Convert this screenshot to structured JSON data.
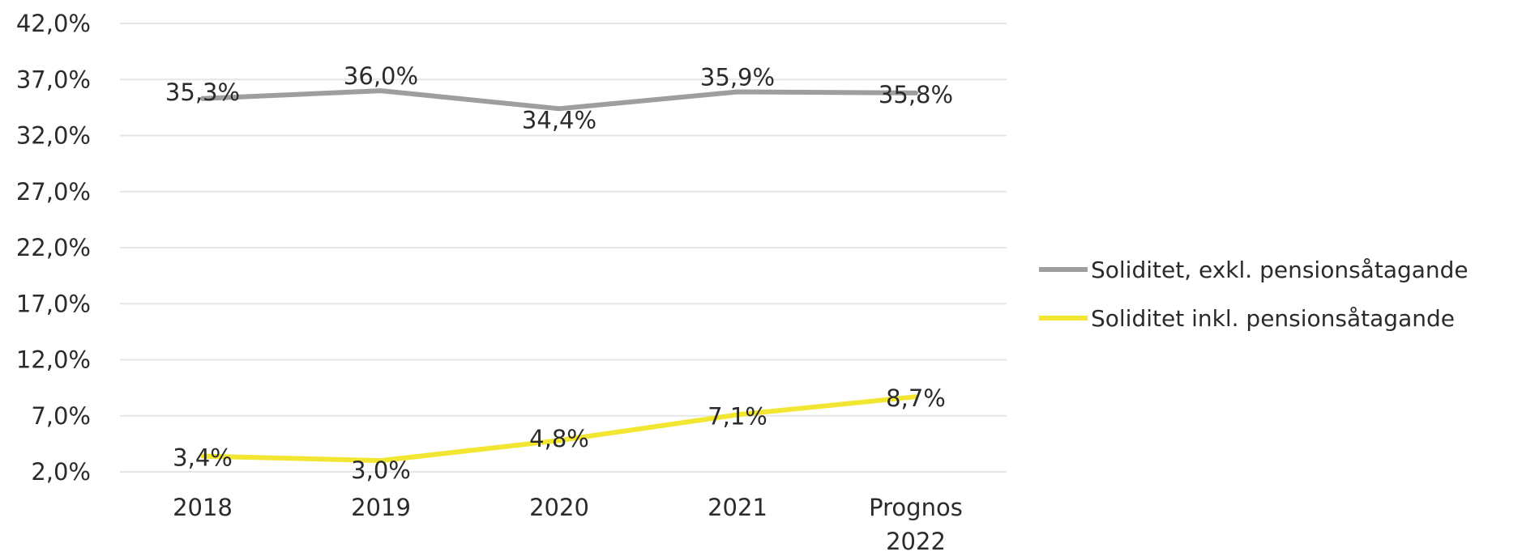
{
  "chart_data": {
    "type": "line",
    "categories": [
      [
        "2018"
      ],
      [
        "2019"
      ],
      [
        "2020"
      ],
      [
        "2021"
      ],
      [
        "Prognos",
        "2022"
      ]
    ],
    "y_ticks": [
      "42,0%",
      "37,0%",
      "32,0%",
      "27,0%",
      "22,0%",
      "17,0%",
      "12,0%",
      "7,0%",
      "2,0%"
    ],
    "ylim": [
      2.0,
      42.0
    ],
    "grid": true,
    "legend_position": "right",
    "series": [
      {
        "name": "Soliditet, exkl. pensionsåtagande",
        "color": "#9e9e9e",
        "values": [
          35.3,
          36.0,
          34.4,
          35.9,
          35.8
        ],
        "labels": [
          "35,3%",
          "36,0%",
          "34,4%",
          "35,9%",
          "35,8%"
        ]
      },
      {
        "name": "Soliditet inkl. pensionsåtagande",
        "color": "#f2e632",
        "values": [
          3.4,
          3.0,
          4.8,
          7.1,
          8.7
        ],
        "labels": [
          "3,4%",
          "3,0%",
          "4,8%",
          "7,1%",
          "8,7%"
        ]
      }
    ]
  }
}
